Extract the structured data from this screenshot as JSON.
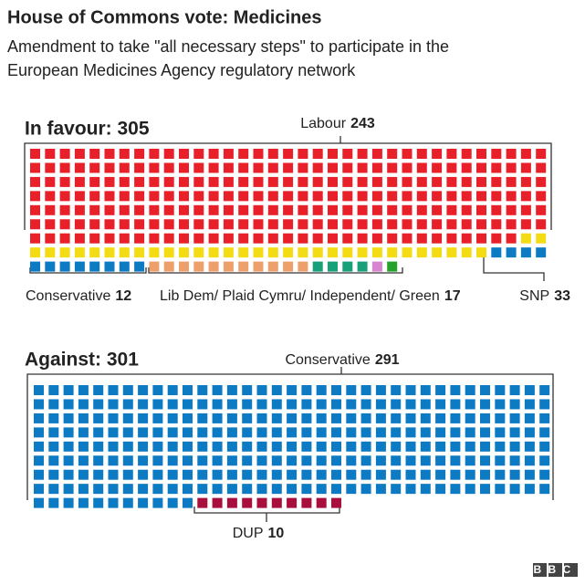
{
  "chart_data": {
    "type": "waffle",
    "title": "House of Commons vote: Medicines",
    "subtitle_lines": [
      "Amendment to take \"all necessary steps\" to participate in the",
      "European Medicines Agency regulatory network"
    ],
    "columns": 35,
    "groups": [
      {
        "title": "In favour: 305",
        "series": [
          {
            "name": "Labour",
            "value": 243,
            "color": "#e8202a"
          },
          {
            "name": "SNP",
            "value": 33,
            "color": "#f4dc14"
          },
          {
            "name": "Conservative",
            "value": 12,
            "color": "#0d7ac4"
          },
          {
            "name": "Lib Dem/ Plaid Cymru/ Independent/ Green",
            "value": 17,
            "segments": [
              {
                "value": 11,
                "color": "#eea06c"
              },
              {
                "value": 4,
                "color": "#17a079"
              },
              {
                "value": 1,
                "color": "#d884d0"
              },
              {
                "value": 1,
                "color": "#24a22a"
              }
            ]
          }
        ]
      },
      {
        "title": "Against: 301",
        "series": [
          {
            "name": "Conservative",
            "value": 291,
            "color": "#0d7ac4"
          },
          {
            "name": "DUP",
            "value": 10,
            "color": "#a80f3c"
          }
        ]
      }
    ],
    "logo": "BBC"
  }
}
